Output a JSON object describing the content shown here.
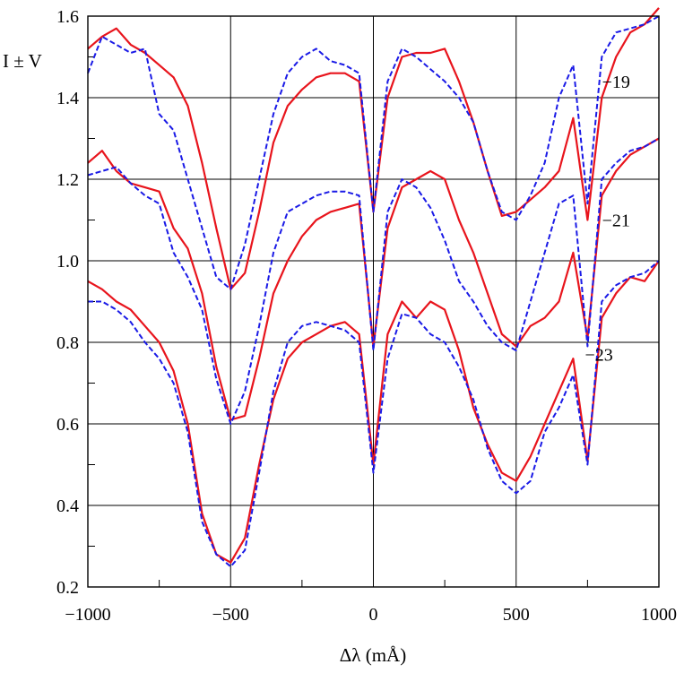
{
  "chart_data": {
    "type": "line",
    "title": "",
    "xlabel": "Δλ (mÅ)",
    "ylabel": "I ± V",
    "xlim": [
      -1000,
      1000
    ],
    "ylim": [
      0.2,
      1.6
    ],
    "x_ticks": [
      -1000,
      -500,
      0,
      500,
      1000
    ],
    "x_tick_labels": [
      "−1000",
      "−500",
      "0",
      "500",
      "1000"
    ],
    "y_ticks": [
      0.2,
      0.4,
      0.6,
      0.8,
      1.0,
      1.2,
      1.4,
      1.6
    ],
    "y_tick_labels": [
      "0.2",
      "0.4",
      "0.6",
      "0.8",
      "1.0",
      "1.2",
      "1.4",
      "1.6"
    ],
    "x_minor_step": 250,
    "y_minor_step": 0.1,
    "grid": true,
    "curve_labels": [
      {
        "text": "−19",
        "x": 850,
        "y": 1.44
      },
      {
        "text": "−21",
        "x": 850,
        "y": 1.1
      },
      {
        "text": "−23",
        "x": 790,
        "y": 0.77
      }
    ],
    "series": [
      {
        "group": "−19",
        "style": "solid",
        "color": "#e8141c",
        "x": [
          -1000,
          -950,
          -900,
          -850,
          -800,
          -750,
          -700,
          -650,
          -600,
          -550,
          -500,
          -450,
          -400,
          -350,
          -300,
          -250,
          -200,
          -150,
          -100,
          -50,
          0,
          50,
          100,
          150,
          200,
          250,
          300,
          350,
          400,
          450,
          500,
          550,
          600,
          650,
          700,
          750,
          800,
          850,
          900,
          950,
          1000
        ],
        "y": [
          1.52,
          1.55,
          1.57,
          1.53,
          1.51,
          1.48,
          1.45,
          1.38,
          1.24,
          1.08,
          0.93,
          0.97,
          1.12,
          1.29,
          1.38,
          1.42,
          1.45,
          1.46,
          1.46,
          1.44,
          1.12,
          1.4,
          1.5,
          1.51,
          1.51,
          1.52,
          1.44,
          1.34,
          1.22,
          1.11,
          1.12,
          1.15,
          1.18,
          1.22,
          1.35,
          1.1,
          1.4,
          1.5,
          1.56,
          1.58,
          1.62
        ]
      },
      {
        "group": "−19",
        "style": "dashed",
        "color": "#1a1ae6",
        "x": [
          -1000,
          -950,
          -900,
          -850,
          -800,
          -750,
          -700,
          -650,
          -600,
          -550,
          -500,
          -450,
          -400,
          -350,
          -300,
          -250,
          -200,
          -150,
          -100,
          -50,
          0,
          50,
          100,
          150,
          200,
          250,
          300,
          350,
          400,
          450,
          500,
          550,
          600,
          650,
          700,
          750,
          800,
          850,
          900,
          950,
          1000
        ],
        "y": [
          1.46,
          1.55,
          1.53,
          1.51,
          1.52,
          1.36,
          1.32,
          1.2,
          1.08,
          0.96,
          0.93,
          1.04,
          1.2,
          1.36,
          1.46,
          1.5,
          1.52,
          1.49,
          1.48,
          1.46,
          1.12,
          1.44,
          1.52,
          1.5,
          1.47,
          1.44,
          1.4,
          1.34,
          1.22,
          1.12,
          1.1,
          1.16,
          1.24,
          1.4,
          1.48,
          1.14,
          1.5,
          1.56,
          1.57,
          1.58,
          1.6
        ]
      },
      {
        "group": "−21",
        "style": "solid",
        "color": "#e8141c",
        "x": [
          -1000,
          -950,
          -900,
          -850,
          -800,
          -750,
          -700,
          -650,
          -600,
          -550,
          -500,
          -450,
          -400,
          -350,
          -300,
          -250,
          -200,
          -150,
          -100,
          -50,
          0,
          50,
          100,
          150,
          200,
          250,
          300,
          350,
          400,
          450,
          500,
          550,
          600,
          650,
          700,
          750,
          800,
          850,
          900,
          950,
          1000
        ],
        "y": [
          1.24,
          1.27,
          1.22,
          1.19,
          1.18,
          1.17,
          1.08,
          1.03,
          0.92,
          0.74,
          0.61,
          0.62,
          0.76,
          0.92,
          1.0,
          1.06,
          1.1,
          1.12,
          1.13,
          1.14,
          0.79,
          1.08,
          1.18,
          1.2,
          1.22,
          1.2,
          1.1,
          1.02,
          0.92,
          0.82,
          0.79,
          0.84,
          0.86,
          0.9,
          1.02,
          0.81,
          1.16,
          1.22,
          1.26,
          1.28,
          1.3
        ]
      },
      {
        "group": "−21",
        "style": "dashed",
        "color": "#1a1ae6",
        "x": [
          -1000,
          -950,
          -900,
          -850,
          -800,
          -750,
          -700,
          -650,
          -600,
          -550,
          -500,
          -450,
          -400,
          -350,
          -300,
          -250,
          -200,
          -150,
          -100,
          -50,
          0,
          50,
          100,
          150,
          200,
          250,
          300,
          350,
          400,
          450,
          500,
          550,
          600,
          650,
          700,
          750,
          800,
          850,
          900,
          950,
          1000
        ],
        "y": [
          1.21,
          1.22,
          1.23,
          1.19,
          1.16,
          1.14,
          1.02,
          0.96,
          0.88,
          0.71,
          0.6,
          0.68,
          0.84,
          1.02,
          1.12,
          1.14,
          1.16,
          1.17,
          1.17,
          1.16,
          0.78,
          1.12,
          1.2,
          1.18,
          1.13,
          1.05,
          0.95,
          0.9,
          0.84,
          0.8,
          0.78,
          0.9,
          1.02,
          1.14,
          1.16,
          0.79,
          1.2,
          1.24,
          1.27,
          1.28,
          1.3
        ]
      },
      {
        "group": "−23",
        "style": "solid",
        "color": "#e8141c",
        "x": [
          -1000,
          -950,
          -900,
          -850,
          -800,
          -750,
          -700,
          -650,
          -600,
          -550,
          -500,
          -450,
          -400,
          -350,
          -300,
          -250,
          -200,
          -150,
          -100,
          -50,
          0,
          50,
          100,
          150,
          200,
          250,
          300,
          350,
          400,
          450,
          500,
          550,
          600,
          650,
          700,
          750,
          800,
          850,
          900,
          950,
          1000
        ],
        "y": [
          0.95,
          0.93,
          0.9,
          0.88,
          0.84,
          0.8,
          0.73,
          0.6,
          0.38,
          0.28,
          0.26,
          0.32,
          0.5,
          0.66,
          0.76,
          0.8,
          0.82,
          0.84,
          0.85,
          0.82,
          0.5,
          0.82,
          0.9,
          0.86,
          0.9,
          0.88,
          0.78,
          0.64,
          0.55,
          0.48,
          0.46,
          0.52,
          0.6,
          0.68,
          0.76,
          0.51,
          0.86,
          0.92,
          0.96,
          0.95,
          1.0
        ]
      },
      {
        "group": "−23",
        "style": "dashed",
        "color": "#1a1ae6",
        "x": [
          -1000,
          -950,
          -900,
          -850,
          -800,
          -750,
          -700,
          -650,
          -600,
          -550,
          -500,
          -450,
          -400,
          -350,
          -300,
          -250,
          -200,
          -150,
          -100,
          -50,
          0,
          50,
          100,
          150,
          200,
          250,
          300,
          350,
          400,
          450,
          500,
          550,
          600,
          650,
          700,
          750,
          800,
          850,
          900,
          950,
          1000
        ],
        "y": [
          0.9,
          0.9,
          0.88,
          0.85,
          0.8,
          0.76,
          0.7,
          0.58,
          0.36,
          0.28,
          0.25,
          0.29,
          0.48,
          0.68,
          0.8,
          0.84,
          0.85,
          0.84,
          0.83,
          0.8,
          0.48,
          0.76,
          0.87,
          0.86,
          0.82,
          0.8,
          0.74,
          0.66,
          0.54,
          0.46,
          0.43,
          0.46,
          0.58,
          0.64,
          0.72,
          0.5,
          0.9,
          0.94,
          0.96,
          0.97,
          1.0
        ]
      }
    ]
  }
}
